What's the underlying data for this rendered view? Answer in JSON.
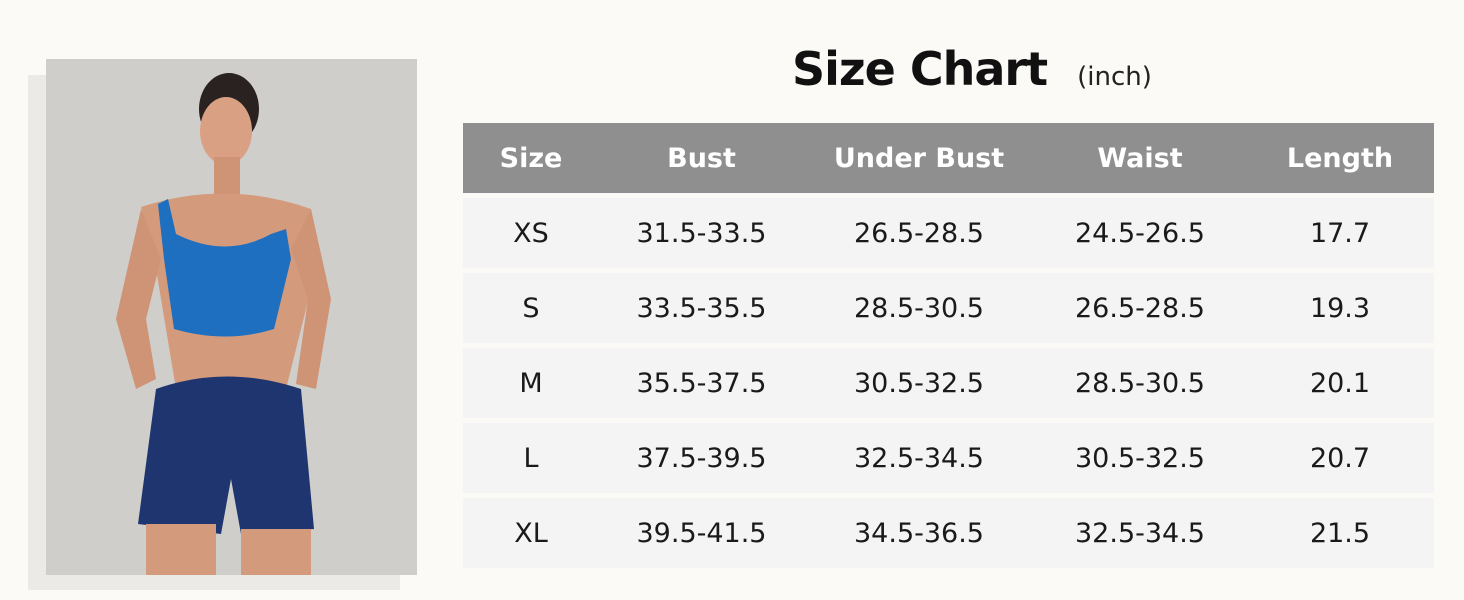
{
  "title": "Size Chart",
  "unit": "(inch)",
  "colors": {
    "header_bg": "#8f8f8f",
    "row_bg": "#f4f4f4",
    "page_bg": "#fbfaf6",
    "top": "#1f6fc0",
    "shorts": "#1e3570"
  },
  "table": {
    "headers": [
      "Size",
      "Bust",
      "Under Bust",
      "Waist",
      "Length"
    ],
    "rows": [
      [
        "XS",
        "31.5-33.5",
        "26.5-28.5",
        "24.5-26.5",
        "17.7"
      ],
      [
        "S",
        "33.5-35.5",
        "28.5-30.5",
        "26.5-28.5",
        "19.3"
      ],
      [
        "M",
        "35.5-37.5",
        "30.5-32.5",
        "28.5-30.5",
        "20.1"
      ],
      [
        "L",
        "37.5-39.5",
        "32.5-34.5",
        "30.5-32.5",
        "20.7"
      ],
      [
        "XL",
        "39.5-41.5",
        "34.5-36.5",
        "32.5-34.5",
        "21.5"
      ]
    ]
  }
}
